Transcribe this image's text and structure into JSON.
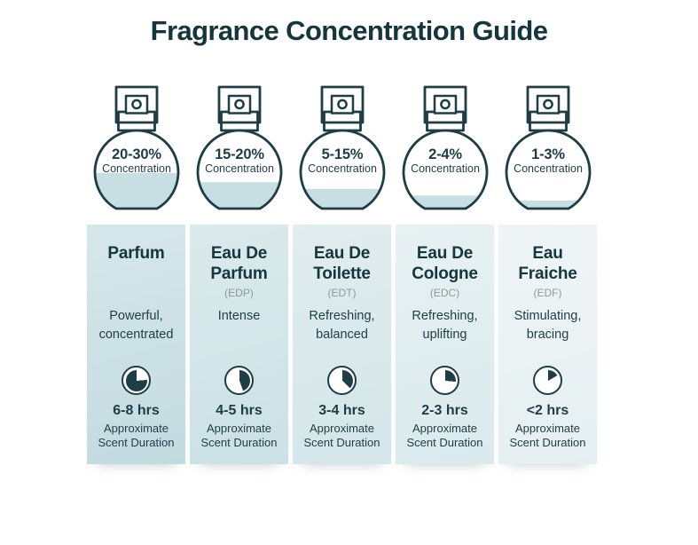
{
  "title": "Fragrance Concentration Guide",
  "colors": {
    "ink": "#1e3d44",
    "title_ink": "#15363c",
    "liquid": "#c7dfe2",
    "abbr_gray": "#8e999d",
    "page_bg": "#ffffff"
  },
  "concentration_label": "Concentration",
  "duration_label": "Approximate\nScent Duration",
  "columns": [
    {
      "name": "Parfum",
      "abbr": "",
      "concentration": "20-30%",
      "description": "Powerful,\nconcentrated",
      "duration": "6-8 hrs",
      "fill_percent": 49,
      "clock_start_deg": 85,
      "clock_sweep_deg": 275,
      "bg_top": "#d6e7ea",
      "bg_bottom": "#c2dbe0"
    },
    {
      "name": "Eau De\nParfum",
      "abbr": "(EDP)",
      "concentration": "15-20%",
      "description": "Intense",
      "duration": "4-5 hrs",
      "fill_percent": 38,
      "clock_start_deg": 0,
      "clock_sweep_deg": 160,
      "bg_top": "#dbeaec",
      "bg_bottom": "#cbe1e5"
    },
    {
      "name": "Eau De\nToilette",
      "abbr": "(EDT)",
      "concentration": "5-15%",
      "description": "Refreshing,\nbalanced",
      "duration": "3-4 hrs",
      "fill_percent": 30,
      "clock_start_deg": 0,
      "clock_sweep_deg": 135,
      "bg_top": "#e1edef",
      "bg_bottom": "#d3e6e9"
    },
    {
      "name": "Eau De\nCologne",
      "abbr": "(EDC)",
      "concentration": "2-4%",
      "description": "Refreshing,\nuplifting",
      "duration": "2-3 hrs",
      "fill_percent": 22,
      "clock_start_deg": 0,
      "clock_sweep_deg": 95,
      "bg_top": "#e7f1f2",
      "bg_bottom": "#daeaed"
    },
    {
      "name": "Eau\nFraiche",
      "abbr": "(EDF)",
      "concentration": "1-3%",
      "description": "Stimulating,\nbracing",
      "duration": "<2 hrs",
      "fill_percent": 16,
      "clock_start_deg": 0,
      "clock_sweep_deg": 60,
      "bg_top": "#eff5f6",
      "bg_bottom": "#e5eff1"
    }
  ]
}
